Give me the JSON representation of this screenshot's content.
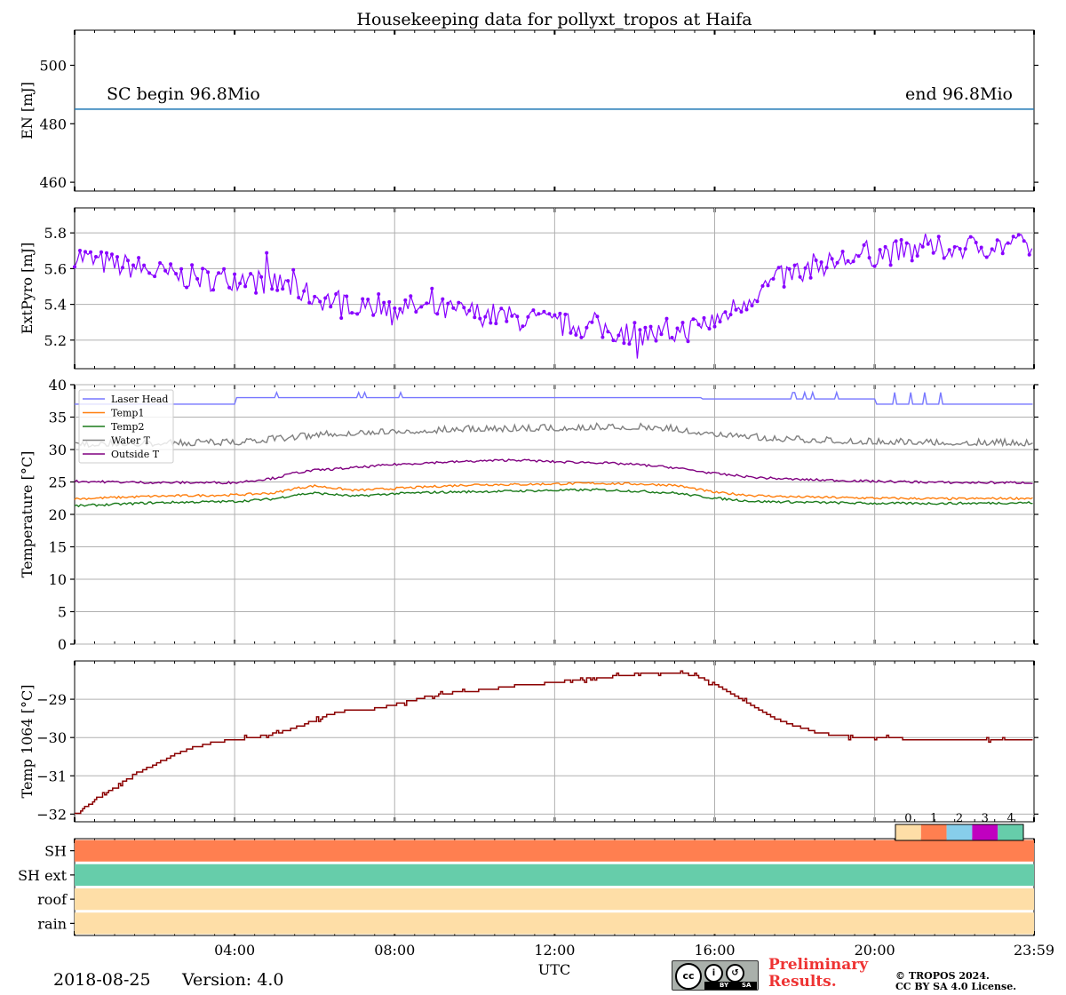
{
  "title": "Housekeeping data for pollyxt_tropos at Haifa",
  "footer": {
    "date": "2018-08-25",
    "version": "Version: 4.0",
    "preliminary_line1": "Preliminary",
    "preliminary_line2": "Results.",
    "copyright_line1": "© TROPOS 2024.",
    "copyright_line2": "CC BY SA 4.0 License.",
    "license_badge": {
      "icon": "cc-by-sa-icon",
      "cc": "cc",
      "by": "BY",
      "sa": "SA"
    }
  },
  "chart_data": [
    {
      "id": "energy",
      "type": "line",
      "ylabel": "EN [mJ]",
      "ylim": [
        457,
        512
      ],
      "yticks": [
        460,
        480,
        500
      ],
      "x": [
        0,
        1440
      ],
      "series": [
        {
          "values": [
            485,
            485
          ],
          "color": "#1f77b4"
        }
      ],
      "annotations": [
        "SC begin 96.8Mio",
        "end 96.8Mio"
      ]
    },
    {
      "id": "extpyro",
      "type": "line",
      "ylabel": "ExtPyro [mJ]",
      "ylim": [
        5.04,
        5.94
      ],
      "yticks": [
        5.2,
        5.4,
        5.6,
        5.8
      ],
      "grid": true,
      "series": [
        {
          "color": "#8800ff",
          "markers": true,
          "x": [
            0,
            30,
            60,
            90,
            120,
            150,
            180,
            210,
            240,
            270,
            300,
            330,
            360,
            390,
            420,
            450,
            480,
            510,
            540,
            570,
            600,
            630,
            660,
            690,
            720,
            750,
            780,
            810,
            840,
            870,
            900,
            930,
            960,
            990,
            1020,
            1050,
            1080,
            1110,
            1140,
            1170,
            1200,
            1230,
            1260,
            1290,
            1320,
            1350,
            1380,
            1410,
            1439
          ],
          "values": [
            5.68,
            5.64,
            5.62,
            5.61,
            5.58,
            5.56,
            5.55,
            5.54,
            5.55,
            5.53,
            5.52,
            5.49,
            5.44,
            5.42,
            5.41,
            5.4,
            5.39,
            5.38,
            5.37,
            5.36,
            5.35,
            5.34,
            5.32,
            5.31,
            5.29,
            5.28,
            5.27,
            5.25,
            5.24,
            5.23,
            5.24,
            5.27,
            5.31,
            5.38,
            5.46,
            5.53,
            5.58,
            5.62,
            5.64,
            5.66,
            5.68,
            5.69,
            5.7,
            5.71,
            5.72,
            5.72,
            5.73,
            5.73,
            5.72
          ],
          "noise": 0.07
        }
      ]
    },
    {
      "id": "temperature",
      "type": "line",
      "ylabel": "Temperature [$^\\circ C$]",
      "ylabel_text": "Temperature [°C]",
      "ylim": [
        0,
        40
      ],
      "yticks": [
        0,
        5,
        10,
        15,
        20,
        25,
        30,
        35,
        40
      ],
      "grid": true,
      "legend_position": "top-left",
      "series": [
        {
          "name": "Laser Head",
          "color": "#7777ff",
          "x": [
            0,
            240,
            241,
            940,
            941,
            1200,
            1201,
            1439
          ],
          "values": [
            37,
            37,
            38,
            38,
            37.8,
            37.8,
            37,
            37
          ],
          "spikes": 38.8
        },
        {
          "name": "Temp1",
          "color": "#ff7f0e",
          "x": [
            0,
            120,
            240,
            300,
            330,
            360,
            420,
            480,
            540,
            600,
            660,
            720,
            780,
            840,
            900,
            960,
            1020,
            1080,
            1200,
            1320,
            1439
          ],
          "values": [
            22.4,
            22.8,
            23.0,
            23.3,
            24.0,
            24.4,
            23.7,
            24.0,
            24.3,
            24.6,
            24.6,
            24.7,
            24.8,
            24.7,
            24.5,
            23.4,
            22.9,
            22.7,
            22.5,
            22.4,
            22.5
          ]
        },
        {
          "name": "Temp2",
          "color": "#1a7a1a",
          "x": [
            0,
            120,
            240,
            300,
            330,
            360,
            420,
            480,
            540,
            600,
            660,
            720,
            780,
            840,
            900,
            960,
            1020,
            1080,
            1200,
            1320,
            1439
          ],
          "values": [
            21.3,
            21.8,
            22.0,
            22.4,
            23.0,
            23.3,
            22.8,
            23.2,
            23.4,
            23.5,
            23.6,
            23.7,
            23.8,
            23.6,
            23.3,
            22.5,
            22.0,
            21.9,
            21.7,
            21.7,
            21.8
          ]
        },
        {
          "name": "Water T",
          "color": "#808080",
          "x": [
            0,
            240,
            300,
            360,
            420,
            480,
            540,
            600,
            660,
            720,
            780,
            840,
            900,
            960,
            1020,
            1080,
            1200,
            1320,
            1439
          ],
          "values": [
            30.6,
            30.9,
            31.4,
            32.0,
            32.4,
            32.6,
            32.7,
            33.0,
            33.0,
            33.1,
            33.3,
            33.3,
            33.0,
            32.2,
            31.7,
            31.3,
            31.0,
            30.9,
            30.8
          ],
          "noise": 0.8
        },
        {
          "name": "Outside T",
          "color": "#800080",
          "x": [
            0,
            120,
            240,
            300,
            330,
            360,
            420,
            480,
            540,
            600,
            660,
            720,
            780,
            840,
            900,
            960,
            1020,
            1080,
            1200,
            1320,
            1439
          ],
          "values": [
            25.1,
            24.9,
            24.9,
            25.6,
            26.4,
            26.8,
            27.2,
            27.7,
            28.0,
            28.2,
            28.4,
            28.1,
            28.0,
            27.7,
            27.2,
            26.3,
            25.7,
            25.4,
            25.1,
            24.9,
            24.9
          ]
        }
      ]
    },
    {
      "id": "temp1064",
      "type": "line",
      "ylabel": "Temp 1064 [$^\\circ C$]",
      "ylabel_text": "Temp 1064 [°C]",
      "ylim": [
        -32.2,
        -28.0
      ],
      "yticks": [
        -32,
        -31,
        -30,
        -29
      ],
      "grid": true,
      "series": [
        {
          "color": "#8b0000",
          "x": [
            0,
            30,
            60,
            90,
            120,
            150,
            180,
            210,
            240,
            270,
            300,
            330,
            360,
            390,
            420,
            450,
            480,
            510,
            540,
            570,
            600,
            630,
            660,
            690,
            720,
            750,
            780,
            810,
            840,
            870,
            900,
            930,
            960,
            990,
            1020,
            1050,
            1080,
            1110,
            1140,
            1170,
            1200,
            1230,
            1260,
            1290,
            1320,
            1350,
            1380,
            1410,
            1439
          ],
          "values": [
            -32.0,
            -31.65,
            -31.3,
            -30.95,
            -30.7,
            -30.45,
            -30.25,
            -30.12,
            -30.05,
            -30.0,
            -29.9,
            -29.75,
            -29.55,
            -29.35,
            -29.28,
            -29.25,
            -29.15,
            -29.0,
            -28.9,
            -28.82,
            -28.78,
            -28.72,
            -28.65,
            -28.62,
            -28.55,
            -28.5,
            -28.45,
            -28.4,
            -28.35,
            -28.32,
            -28.3,
            -28.38,
            -28.6,
            -28.9,
            -29.2,
            -29.5,
            -29.7,
            -29.85,
            -29.95,
            -29.98,
            -30.0,
            -30.02,
            -30.05,
            -30.08,
            -30.08,
            -30.08,
            -30.09,
            -30.09,
            -30.09
          ],
          "step": true
        }
      ]
    },
    {
      "id": "status",
      "type": "heatmap",
      "rows": [
        "SH",
        "SH ext",
        "roof",
        "rain"
      ],
      "row_values": [
        1,
        4,
        0,
        0
      ],
      "colorbar_labels": [
        "0",
        "1",
        "2",
        "3",
        "4"
      ],
      "colors": [
        "#fedea7",
        "#ff7f50",
        "#87ceeb",
        "#c000c0",
        "#66cdaa"
      ]
    }
  ],
  "x_axis": {
    "label": "UTC",
    "range_minutes": [
      0,
      1439
    ],
    "ticks": [
      {
        "minute": 0,
        "label": ""
      },
      {
        "minute": 240,
        "label": "04:00"
      },
      {
        "minute": 480,
        "label": "08:00"
      },
      {
        "minute": 720,
        "label": "12:00"
      },
      {
        "minute": 960,
        "label": "16:00"
      },
      {
        "minute": 1200,
        "label": "20:00"
      },
      {
        "minute": 1439,
        "label": "23:59"
      }
    ]
  }
}
